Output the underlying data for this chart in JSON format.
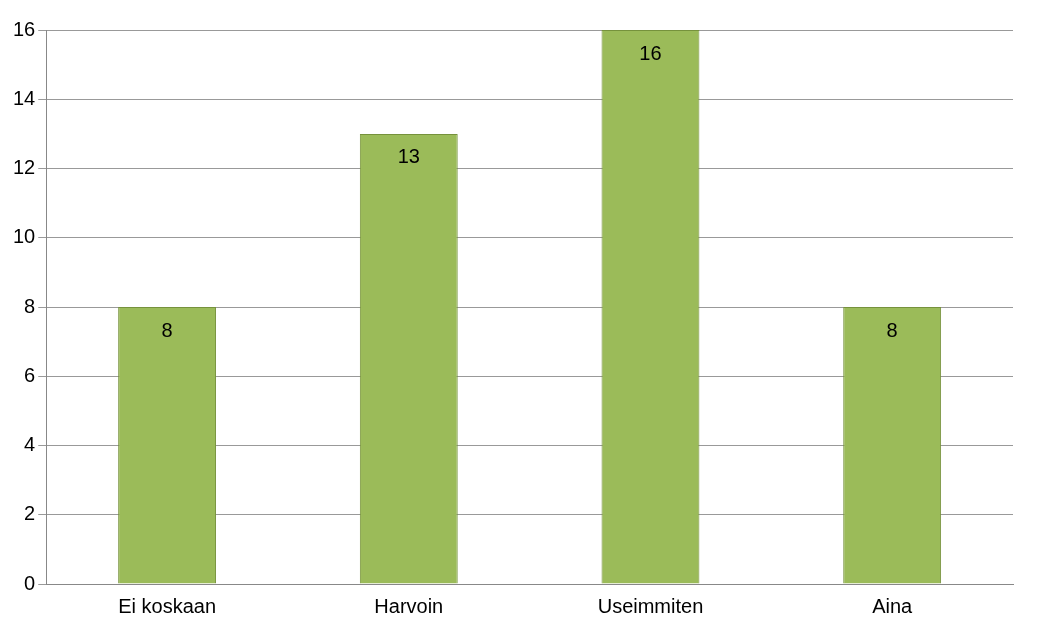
{
  "chart_data": {
    "type": "bar",
    "categories": [
      "Ei koskaan",
      "Harvoin",
      "Useimmiten",
      "Aina"
    ],
    "values": [
      8,
      13,
      16,
      8
    ],
    "color": "#9bbb59",
    "ylim": [
      0,
      16
    ],
    "yticks": [
      0,
      2,
      4,
      6,
      8,
      10,
      12,
      14,
      16
    ],
    "grid": "y",
    "data_labels": true
  }
}
